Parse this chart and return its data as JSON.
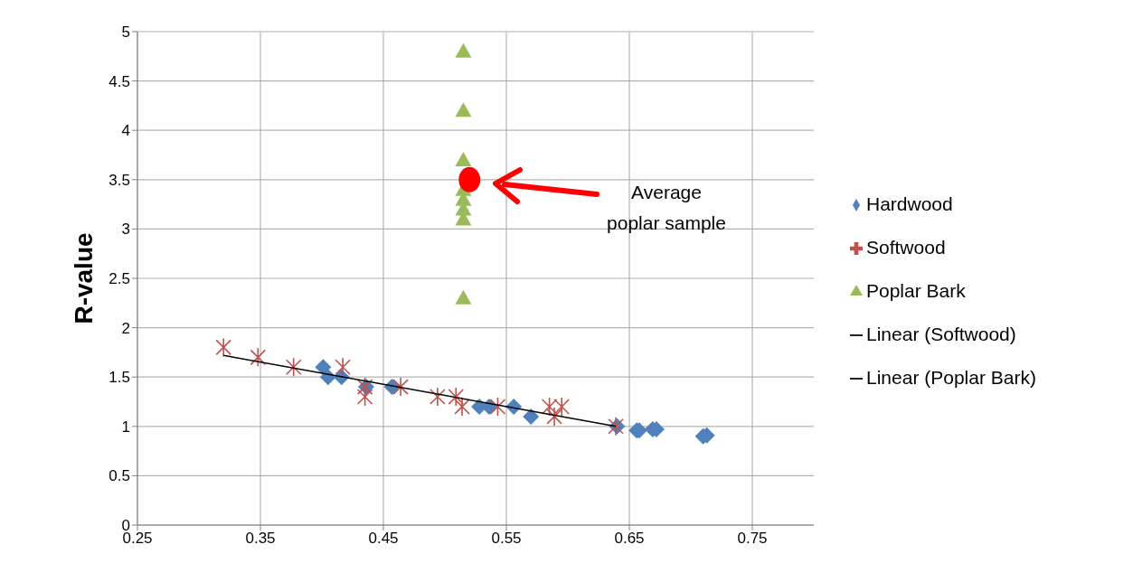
{
  "chart_data": {
    "type": "scatter",
    "ylabel": "R-value",
    "xlim": [
      0.25,
      0.8
    ],
    "xticks": [
      0.25,
      0.35,
      0.45,
      0.55,
      0.65,
      0.75
    ],
    "ylim": [
      0,
      5
    ],
    "yticks": [
      0,
      0.5,
      1,
      1.5,
      2,
      2.5,
      3,
      3.5,
      4,
      4.5,
      5
    ],
    "grid": true,
    "legend": "right",
    "series": [
      {
        "name": "Hardwood",
        "marker": "diamond",
        "color": "#4f81bd",
        "x": [
          0.401,
          0.405,
          0.416,
          0.436,
          0.457,
          0.528,
          0.536,
          0.556,
          0.57,
          0.64,
          0.656,
          0.658,
          0.669,
          0.672,
          0.71,
          0.713
        ],
        "values": [
          1.6,
          1.5,
          1.5,
          1.4,
          1.4,
          1.2,
          1.2,
          1.2,
          1.1,
          1.0,
          0.96,
          0.96,
          0.97,
          0.97,
          0.9,
          0.91
        ]
      },
      {
        "name": "Softwood",
        "marker": "cross",
        "color": "#c0504d",
        "x": [
          0.32,
          0.348,
          0.377,
          0.417,
          0.435,
          0.435,
          0.464,
          0.494,
          0.509,
          0.514,
          0.543,
          0.585,
          0.589,
          0.595,
          0.639
        ],
        "values": [
          1.8,
          1.7,
          1.6,
          1.6,
          1.4,
          1.3,
          1.4,
          1.3,
          1.3,
          1.2,
          1.2,
          1.2,
          1.1,
          1.2,
          1.0
        ]
      },
      {
        "name": "Poplar Bark",
        "marker": "triangle",
        "color": "#9bbb59",
        "x": [
          0.515,
          0.515,
          0.515,
          0.515,
          0.515,
          0.515,
          0.515,
          0.515
        ],
        "values": [
          4.8,
          4.2,
          3.7,
          3.4,
          3.3,
          3.2,
          3.1,
          2.3
        ]
      },
      {
        "name": "Linear (Softwood)",
        "type": "line",
        "color": "#000000",
        "x": [
          0.32,
          0.639
        ],
        "values": [
          1.72,
          1.0
        ]
      },
      {
        "name": "Linear (Poplar Bark)",
        "type": "line",
        "color": "#000000"
      },
      {
        "marker": "circle",
        "color": "#ff0000",
        "x": [
          0.52
        ],
        "values": [
          3.5
        ]
      }
    ],
    "annotations": [
      "Average poplar sample"
    ]
  }
}
